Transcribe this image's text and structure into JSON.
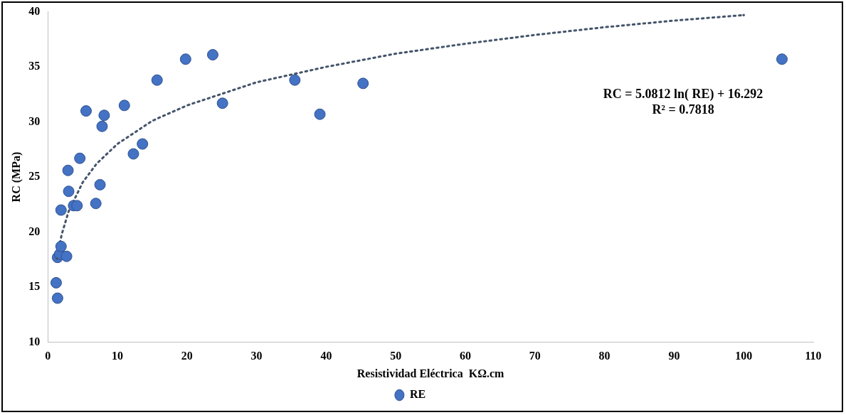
{
  "chart_data": {
    "type": "scatter",
    "xlabel": "Resistividad Eléctrica  KΩ.cm",
    "ylabel": "RC (MPa)",
    "xlim": [
      0,
      110
    ],
    "xticks": [
      0,
      10,
      20,
      30,
      40,
      50,
      60,
      70,
      80,
      90,
      100,
      110
    ],
    "ylim": [
      10,
      40
    ],
    "yticks": [
      10,
      15,
      20,
      25,
      30,
      35,
      40
    ],
    "grid": false,
    "legend": "bottom",
    "marker": "circle",
    "annotations": [
      "RC = 5.0812 ln( RE) + 16.292",
      "R² = 0.7818"
    ],
    "series": [
      {
        "name": "RE",
        "color": "#4472c4",
        "x": [
          1.2,
          1.4,
          1.4,
          1.7,
          1.9,
          2.7,
          1.9,
          2.9,
          3.0,
          3.7,
          4.2,
          4.6,
          5.5,
          6.9,
          7.5,
          7.8,
          8.1,
          11.0,
          12.3,
          13.6,
          15.7,
          19.8,
          23.7,
          25.1,
          35.5,
          39.1,
          45.3,
          105.5
        ],
        "values": [
          15.4,
          14.0,
          17.7,
          18.0,
          18.7,
          17.8,
          22.0,
          25.6,
          23.7,
          22.4,
          22.4,
          26.7,
          31.0,
          22.6,
          24.3,
          29.6,
          30.6,
          31.5,
          27.1,
          28.0,
          33.8,
          35.7,
          36.1,
          31.7,
          33.8,
          30.7,
          33.5,
          35.7
        ]
      },
      {
        "type": "line",
        "color": "#44546a",
        "line_style": "dotted",
        "marker": "none",
        "x": [
          1.3,
          2,
          3,
          5,
          7,
          10,
          15,
          20,
          30,
          40,
          50,
          60,
          70,
          80,
          90,
          100
        ],
        "values": [
          17.6,
          19.8,
          21.9,
          24.5,
          26.2,
          28.0,
          30.1,
          31.5,
          33.6,
          35.0,
          36.2,
          37.1,
          37.9,
          38.6,
          39.2,
          39.7
        ]
      }
    ]
  }
}
